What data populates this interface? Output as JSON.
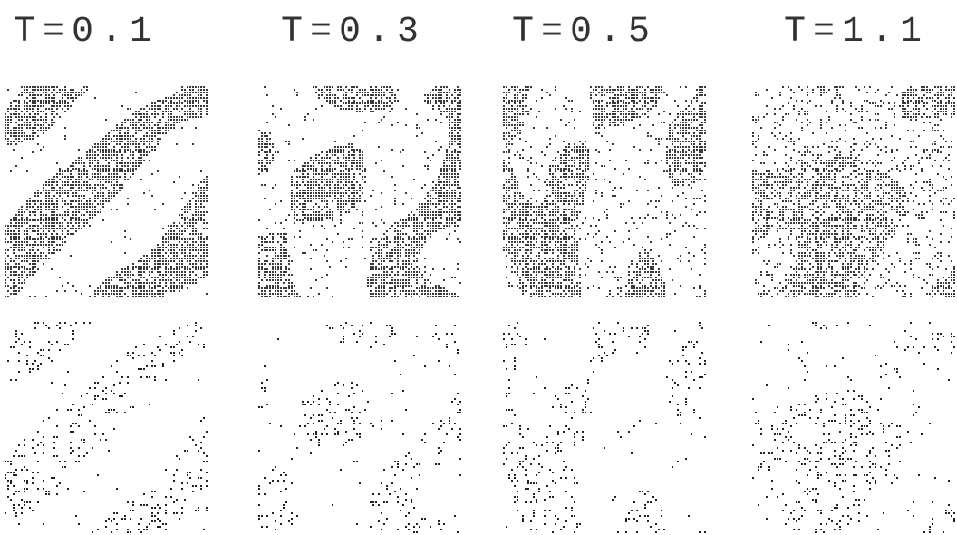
{
  "panels": [
    {
      "label": "T=0.1"
    },
    {
      "label": "T=0.3"
    },
    {
      "label": "T=0.5"
    },
    {
      "label": "T=1.1"
    }
  ]
}
